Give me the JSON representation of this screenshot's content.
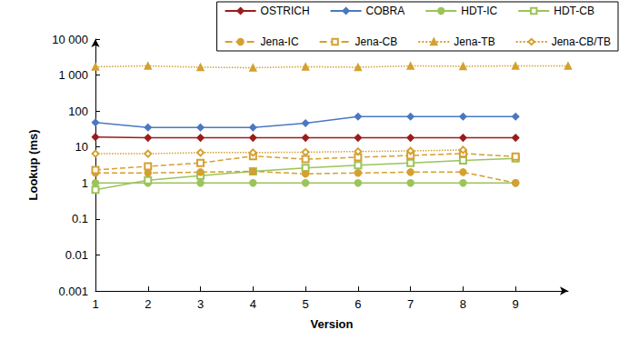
{
  "chart_data": {
    "type": "line",
    "x_label": "Version",
    "y_label": "Lookup (ms)",
    "log": "y",
    "grid": false,
    "legend": "top-right",
    "x": [
      1,
      2,
      3,
      4,
      5,
      6,
      7,
      8,
      9,
      10
    ],
    "xlim": [
      1,
      10
    ],
    "xticks": [
      1,
      2,
      3,
      4,
      5,
      6,
      7,
      8,
      9
    ],
    "ylim": [
      0.001,
      10000
    ],
    "yticks": [
      0.001,
      0.01,
      0.1,
      1,
      10,
      100,
      {
        "value": 1000,
        "label": "1 000"
      },
      {
        "value": 10000,
        "label": "10 000"
      }
    ],
    "series": [
      {
        "name": "OSTRICH",
        "color": "#9b1c1c",
        "marker": "diamond",
        "line_style": "solid",
        "values": [
          19,
          18,
          18,
          18,
          18,
          18,
          18,
          18,
          18,
          null
        ]
      },
      {
        "name": "COBRA",
        "color": "#4a78c2",
        "marker": "diamond",
        "line_style": "solid",
        "values": [
          48,
          35,
          35,
          35,
          46,
          70,
          70,
          70,
          70,
          null
        ]
      },
      {
        "name": "HDT-IC",
        "color": "#9bc45a",
        "marker": "circle",
        "line_style": "solid",
        "values": [
          1,
          1,
          1,
          1,
          1,
          1,
          1,
          1,
          1,
          null
        ]
      },
      {
        "name": "HDT-CB",
        "color": "#9bc45a",
        "marker": "square-open",
        "line_style": "solid",
        "values": [
          0.65,
          1.2,
          1.6,
          2.1,
          2.6,
          3.1,
          3.6,
          4.2,
          4.8,
          null
        ]
      },
      {
        "name": "Jena-IC",
        "color": "#d4a030",
        "marker": "circle",
        "line_style": "dashed",
        "values": [
          1.9,
          1.9,
          2,
          2.1,
          1.8,
          1.9,
          2,
          2,
          1,
          null
        ]
      },
      {
        "name": "Jena-CB",
        "color": "#d4a030",
        "marker": "square-open",
        "line_style": "dashed",
        "values": [
          2.3,
          2.9,
          3.6,
          5.6,
          4.6,
          5.2,
          5.8,
          6.6,
          5.4,
          null
        ]
      },
      {
        "name": "Jena-TB",
        "color": "#d4a030",
        "marker": "triangle",
        "line_style": "dotted",
        "values": [
          1700,
          1800,
          1650,
          1600,
          1700,
          1650,
          1800,
          1750,
          1800,
          1800
        ]
      },
      {
        "name": "Jena-CB/TB",
        "color": "#d4a030",
        "marker": "diamond-open",
        "line_style": "dotted",
        "values": [
          6.5,
          6.5,
          7,
          7,
          7.2,
          7.5,
          7.8,
          8.3,
          null,
          null
        ]
      }
    ]
  }
}
